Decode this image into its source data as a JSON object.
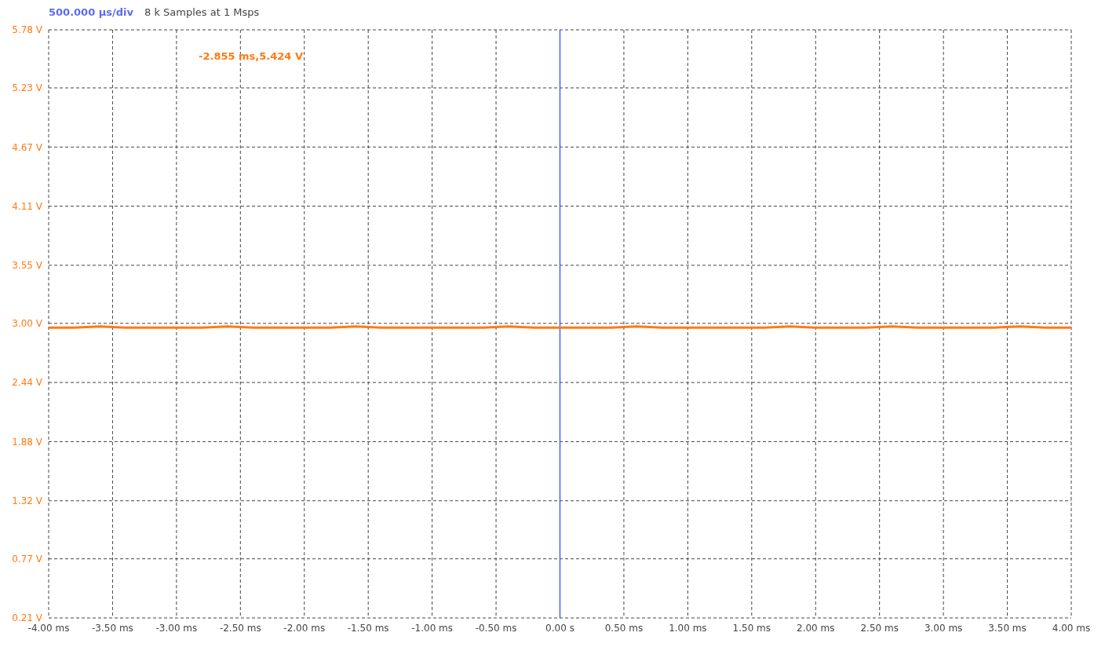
{
  "chart_data": {
    "type": "line",
    "title": "500.000 µs/div",
    "subtitle": "8 k Samples at 1 Msps",
    "x": [
      -4,
      -3.8,
      -3.6,
      -3.4,
      -3.2,
      -3,
      -2.8,
      -2.6,
      -2.4,
      -2.2,
      -2,
      -1.8,
      -1.6,
      -1.4,
      -1.2,
      -1,
      -0.8,
      -0.6,
      -0.4,
      -0.2,
      0,
      0.2,
      0.4,
      0.6,
      0.8,
      1,
      1.2,
      1.4,
      1.6,
      1.8,
      2,
      2.2,
      2.4,
      2.6,
      2.8,
      3,
      3.2,
      3.4,
      3.6,
      3.8,
      4
    ],
    "series": [
      {
        "color": "#ff7a14",
        "values": [
          2.96,
          2.96,
          2.97,
          2.96,
          2.96,
          2.96,
          2.96,
          2.97,
          2.96,
          2.96,
          2.96,
          2.96,
          2.97,
          2.96,
          2.96,
          2.96,
          2.96,
          2.96,
          2.97,
          2.96,
          2.96,
          2.96,
          2.96,
          2.97,
          2.96,
          2.96,
          2.96,
          2.96,
          2.96,
          2.97,
          2.96,
          2.96,
          2.96,
          2.97,
          2.96,
          2.96,
          2.96,
          2.96,
          2.97,
          2.96,
          2.96
        ]
      }
    ],
    "xlim": [
      -4,
      4
    ],
    "xticks": [
      {
        "value": -4,
        "label": "-4.00 ms"
      },
      {
        "value": -3.5,
        "label": "-3.50 ms"
      },
      {
        "value": -3,
        "label": "-3.00 ms"
      },
      {
        "value": -2.5,
        "label": "-2.50 ms"
      },
      {
        "value": -2,
        "label": "-2.00 ms"
      },
      {
        "value": -1.5,
        "label": "-1.50 ms"
      },
      {
        "value": -1,
        "label": "-1.00 ms"
      },
      {
        "value": -0.5,
        "label": "-0.50 ms"
      },
      {
        "value": 0,
        "label": "0.00 s"
      },
      {
        "value": 0.5,
        "label": "0.50 ms"
      },
      {
        "value": 1,
        "label": "1.00 ms"
      },
      {
        "value": 1.5,
        "label": "1.50 ms"
      },
      {
        "value": 2,
        "label": "2.00 ms"
      },
      {
        "value": 2.5,
        "label": "2.50 ms"
      },
      {
        "value": 3,
        "label": "3.00 ms"
      },
      {
        "value": 3.5,
        "label": "3.50 ms"
      },
      {
        "value": 4,
        "label": "4.00 ms"
      }
    ],
    "ylim": [
      0.21,
      5.78
    ],
    "yticks": [
      {
        "value": 0.21,
        "label": "0.21 V"
      },
      {
        "value": 0.77,
        "label": "0.77 V"
      },
      {
        "value": 1.32,
        "label": "1.32 V"
      },
      {
        "value": 1.88,
        "label": "1.88 V"
      },
      {
        "value": 2.44,
        "label": "2.44 V"
      },
      {
        "value": 3.0,
        "label": "3.00 V"
      },
      {
        "value": 3.55,
        "label": "3.55 V"
      },
      {
        "value": 4.11,
        "label": "4.11 V"
      },
      {
        "value": 4.67,
        "label": "4.67 V"
      },
      {
        "value": 5.23,
        "label": "5.23 V"
      },
      {
        "value": 5.78,
        "label": "5.78 V"
      }
    ],
    "grid": true,
    "ref_lines": [
      {
        "axis": "x",
        "value": 0,
        "color": "#4060ff"
      }
    ],
    "annotations": [
      "-2.855 ms,5.424 V"
    ]
  }
}
